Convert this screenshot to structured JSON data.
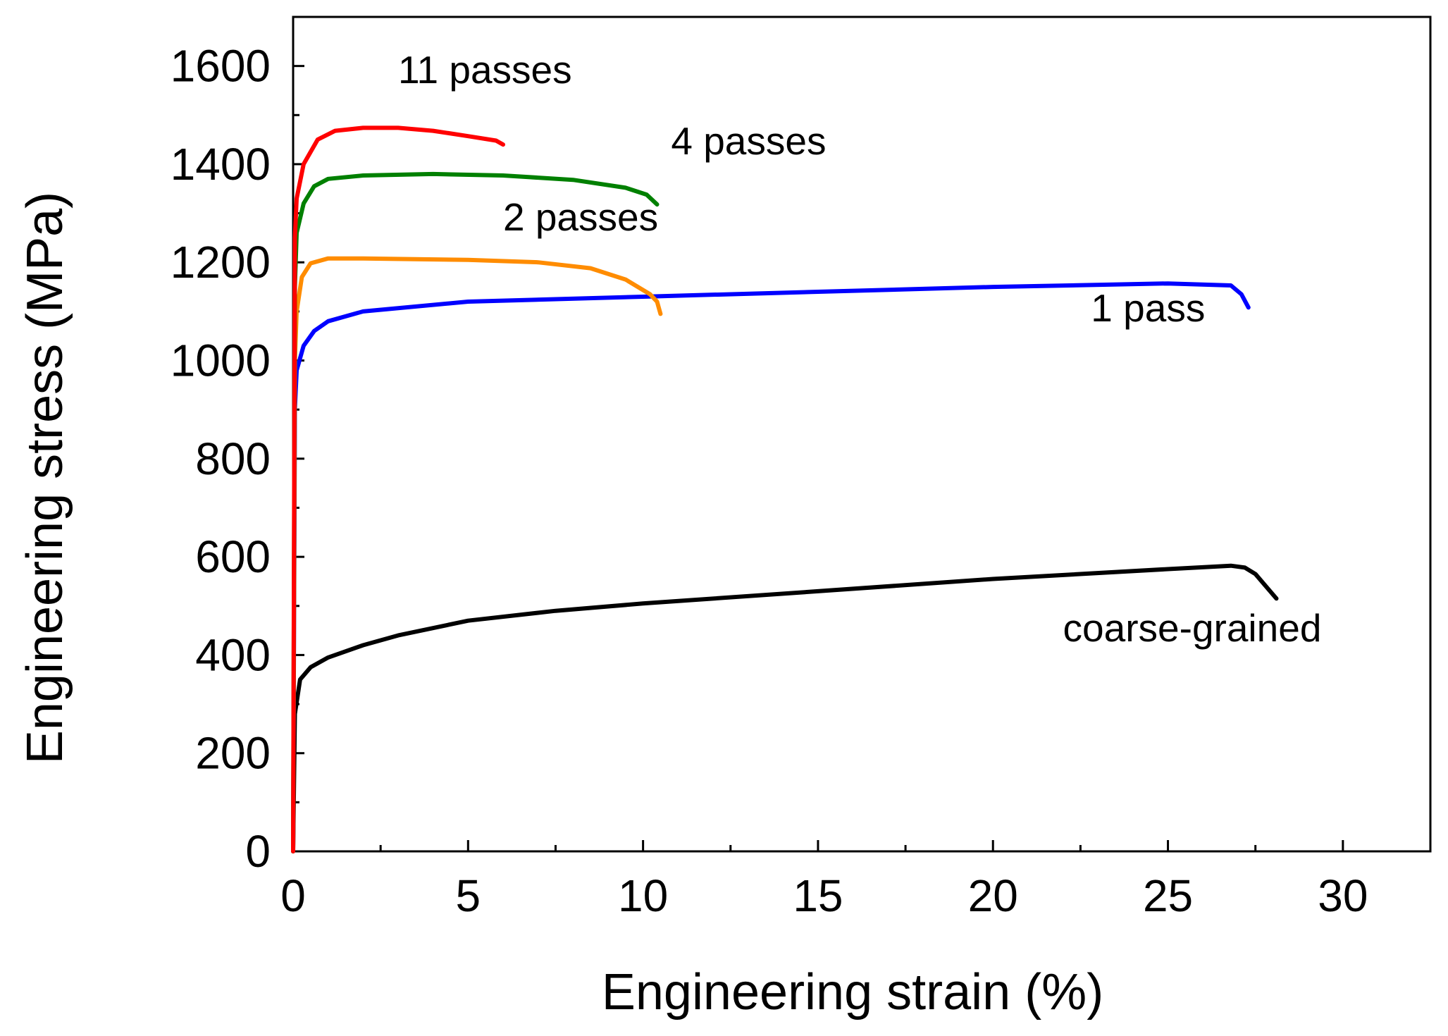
{
  "chart_data": {
    "type": "line",
    "title": "",
    "xlabel": "Engineering strain (%)",
    "ylabel": "Engineering stress (MPa)",
    "xlim": [
      0,
      32.5
    ],
    "ylim": [
      0,
      1700
    ],
    "xticks": [
      0,
      5,
      10,
      15,
      20,
      25,
      30
    ],
    "yticks": [
      0,
      200,
      400,
      600,
      800,
      1000,
      1200,
      1400,
      1600
    ],
    "grid": false,
    "series": [
      {
        "name": "coarse-grained",
        "color": "#000000",
        "points": [
          [
            0,
            0
          ],
          [
            0.05,
            280
          ],
          [
            0.2,
            350
          ],
          [
            0.5,
            375
          ],
          [
            1,
            395
          ],
          [
            2,
            420
          ],
          [
            3,
            440
          ],
          [
            5,
            470
          ],
          [
            7.5,
            490
          ],
          [
            10,
            505
          ],
          [
            15,
            530
          ],
          [
            20,
            555
          ],
          [
            25,
            575
          ],
          [
            26.8,
            582
          ],
          [
            27.2,
            578
          ],
          [
            27.5,
            565
          ],
          [
            27.8,
            540
          ],
          [
            28.1,
            515
          ]
        ]
      },
      {
        "name": "1 pass",
        "color": "#0000ff",
        "points": [
          [
            0,
            0
          ],
          [
            0.05,
            900
          ],
          [
            0.1,
            980
          ],
          [
            0.3,
            1030
          ],
          [
            0.6,
            1060
          ],
          [
            1,
            1080
          ],
          [
            2,
            1100
          ],
          [
            5,
            1120
          ],
          [
            10,
            1130
          ],
          [
            15,
            1140
          ],
          [
            20,
            1150
          ],
          [
            25,
            1157
          ],
          [
            26.8,
            1153
          ],
          [
            27.1,
            1135
          ],
          [
            27.3,
            1108
          ]
        ]
      },
      {
        "name": "2 passes",
        "color": "#ff8c00",
        "points": [
          [
            0,
            0
          ],
          [
            0.05,
            1000
          ],
          [
            0.1,
            1100
          ],
          [
            0.25,
            1170
          ],
          [
            0.5,
            1198
          ],
          [
            1,
            1208
          ],
          [
            2,
            1208
          ],
          [
            5,
            1205
          ],
          [
            7,
            1200
          ],
          [
            8.5,
            1188
          ],
          [
            9.5,
            1165
          ],
          [
            10.2,
            1135
          ],
          [
            10.4,
            1120
          ],
          [
            10.5,
            1095
          ]
        ]
      },
      {
        "name": "4 passes",
        "color": "#008000",
        "points": [
          [
            0,
            0
          ],
          [
            0.05,
            1150
          ],
          [
            0.1,
            1260
          ],
          [
            0.3,
            1320
          ],
          [
            0.6,
            1355
          ],
          [
            1,
            1370
          ],
          [
            2,
            1377
          ],
          [
            4,
            1380
          ],
          [
            6,
            1377
          ],
          [
            8,
            1368
          ],
          [
            9.5,
            1352
          ],
          [
            10.1,
            1338
          ],
          [
            10.4,
            1318
          ]
        ]
      },
      {
        "name": "11 passes",
        "color": "#ff0000",
        "points": [
          [
            0,
            0
          ],
          [
            0.05,
            1250
          ],
          [
            0.1,
            1330
          ],
          [
            0.3,
            1400
          ],
          [
            0.7,
            1450
          ],
          [
            1.2,
            1468
          ],
          [
            2,
            1474
          ],
          [
            3,
            1474
          ],
          [
            4,
            1468
          ],
          [
            5,
            1457
          ],
          [
            5.8,
            1448
          ],
          [
            6,
            1440
          ]
        ]
      }
    ],
    "annotations": [
      {
        "text": "11 passes",
        "x": 3,
        "y": 1565
      },
      {
        "text": "4 passes",
        "x": 10.8,
        "y": 1420
      },
      {
        "text": "2 passes",
        "x": 6,
        "y": 1265
      },
      {
        "text": "1 pass",
        "x": 22.8,
        "y": 1080
      },
      {
        "text": "coarse-grained",
        "x": 22,
        "y": 428
      }
    ]
  }
}
